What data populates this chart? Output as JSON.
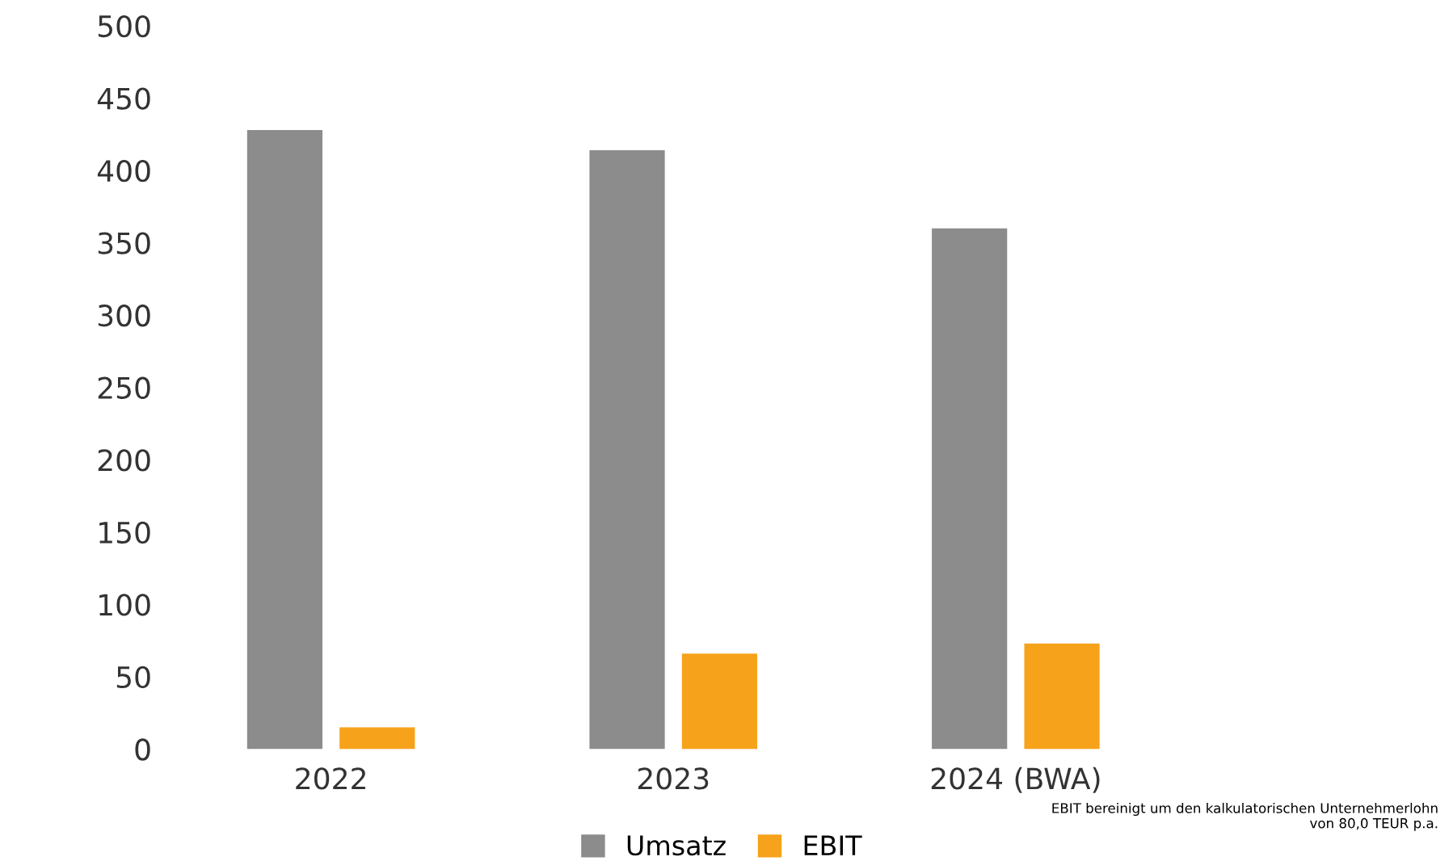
{
  "chart_data": {
    "type": "bar",
    "categories": [
      "2022",
      "2023",
      "2024 (BWA)"
    ],
    "series": [
      {
        "name": "Umsatz",
        "color": "#8c8c8c",
        "values": [
          428,
          414,
          360
        ]
      },
      {
        "name": "EBIT",
        "color": "#f7a21b",
        "values": [
          15,
          66,
          73
        ]
      }
    ],
    "ylim": [
      0,
      500
    ],
    "yticks": [
      0,
      50,
      100,
      150,
      200,
      250,
      300,
      350,
      400,
      450,
      500
    ],
    "grid": false,
    "legend": "bottom",
    "annotations": [
      "EBIT bereinigt um den kalkulatorischen Unternehmerlohn\nvon 80,0 TEUR p.a."
    ]
  }
}
